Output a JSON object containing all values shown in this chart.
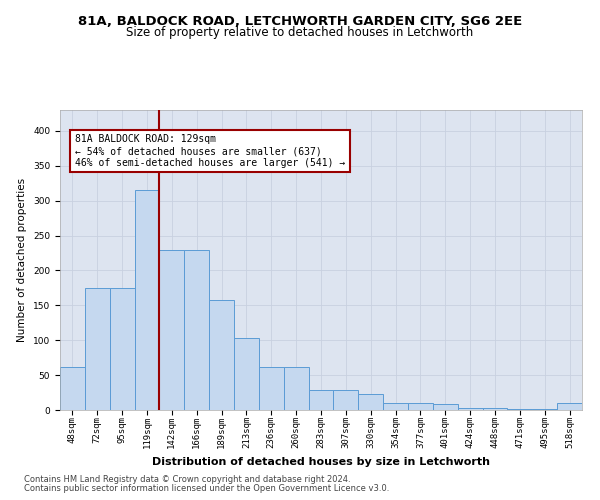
{
  "title1": "81A, BALDOCK ROAD, LETCHWORTH GARDEN CITY, SG6 2EE",
  "title2": "Size of property relative to detached houses in Letchworth",
  "xlabel": "Distribution of detached houses by size in Letchworth",
  "ylabel": "Number of detached properties",
  "categories": [
    "48sqm",
    "72sqm",
    "95sqm",
    "119sqm",
    "142sqm",
    "166sqm",
    "189sqm",
    "213sqm",
    "236sqm",
    "260sqm",
    "283sqm",
    "307sqm",
    "330sqm",
    "354sqm",
    "377sqm",
    "401sqm",
    "424sqm",
    "448sqm",
    "471sqm",
    "495sqm",
    "518sqm"
  ],
  "values": [
    62,
    175,
    175,
    315,
    230,
    230,
    158,
    103,
    62,
    62,
    28,
    28,
    23,
    10,
    10,
    8,
    3,
    3,
    2,
    2,
    10
  ],
  "bar_color": "#c5d8ef",
  "bar_edge_color": "#5b9bd5",
  "vline_x": 3.5,
  "vline_color": "#990000",
  "annotation_text": "81A BALDOCK ROAD: 129sqm\n← 54% of detached houses are smaller (637)\n46% of semi-detached houses are larger (541) →",
  "annotation_box_color": "white",
  "annotation_box_edge": "#990000",
  "ylim": [
    0,
    430
  ],
  "yticks": [
    0,
    50,
    100,
    150,
    200,
    250,
    300,
    350,
    400
  ],
  "grid_color": "#c8d0e0",
  "bg_color": "#dde4f0",
  "footer1": "Contains HM Land Registry data © Crown copyright and database right 2024.",
  "footer2": "Contains public sector information licensed under the Open Government Licence v3.0.",
  "title_fontsize": 9.5,
  "subtitle_fontsize": 8.5,
  "xlabel_fontsize": 8,
  "ylabel_fontsize": 7.5,
  "tick_fontsize": 6.5,
  "footer_fontsize": 6,
  "ann_fontsize": 7
}
